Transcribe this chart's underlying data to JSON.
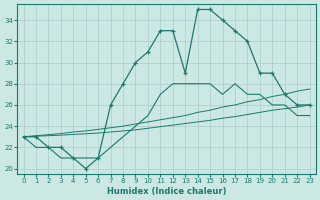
{
  "xlabel": "Humidex (Indice chaleur)",
  "bg_color": "#cce8e4",
  "grid_color": "#aacccc",
  "line_color": "#1a7a6e",
  "xlim": [
    -0.5,
    23.5
  ],
  "ylim": [
    19.5,
    35.5
  ],
  "xticks": [
    0,
    1,
    2,
    3,
    4,
    5,
    6,
    7,
    8,
    9,
    10,
    11,
    12,
    13,
    14,
    15,
    16,
    17,
    18,
    19,
    20,
    21,
    22,
    23
  ],
  "yticks": [
    20,
    22,
    24,
    26,
    28,
    30,
    32,
    34
  ],
  "main_y": [
    23,
    23,
    22,
    22,
    21,
    20,
    21,
    26,
    28,
    30,
    31,
    33,
    33,
    29,
    35,
    35,
    34,
    33,
    32,
    29,
    29,
    27,
    26,
    26
  ],
  "line2_y": [
    23,
    22,
    22,
    21,
    21,
    21,
    21,
    22,
    23,
    24,
    25,
    27,
    28,
    28,
    28,
    28,
    27,
    28,
    27,
    27,
    26,
    26,
    25,
    25
  ],
  "trend1_y": [
    23,
    23.1,
    23.2,
    23.3,
    23.45,
    23.55,
    23.7,
    23.85,
    24.0,
    24.2,
    24.4,
    24.6,
    24.8,
    25.0,
    25.3,
    25.5,
    25.8,
    26.0,
    26.3,
    26.5,
    26.8,
    27.0,
    27.3,
    27.5
  ],
  "trend2_y": [
    23,
    23.05,
    23.1,
    23.15,
    23.22,
    23.28,
    23.35,
    23.45,
    23.55,
    23.65,
    23.8,
    23.95,
    24.1,
    24.25,
    24.4,
    24.55,
    24.75,
    24.9,
    25.1,
    25.3,
    25.5,
    25.65,
    25.8,
    26.0
  ]
}
